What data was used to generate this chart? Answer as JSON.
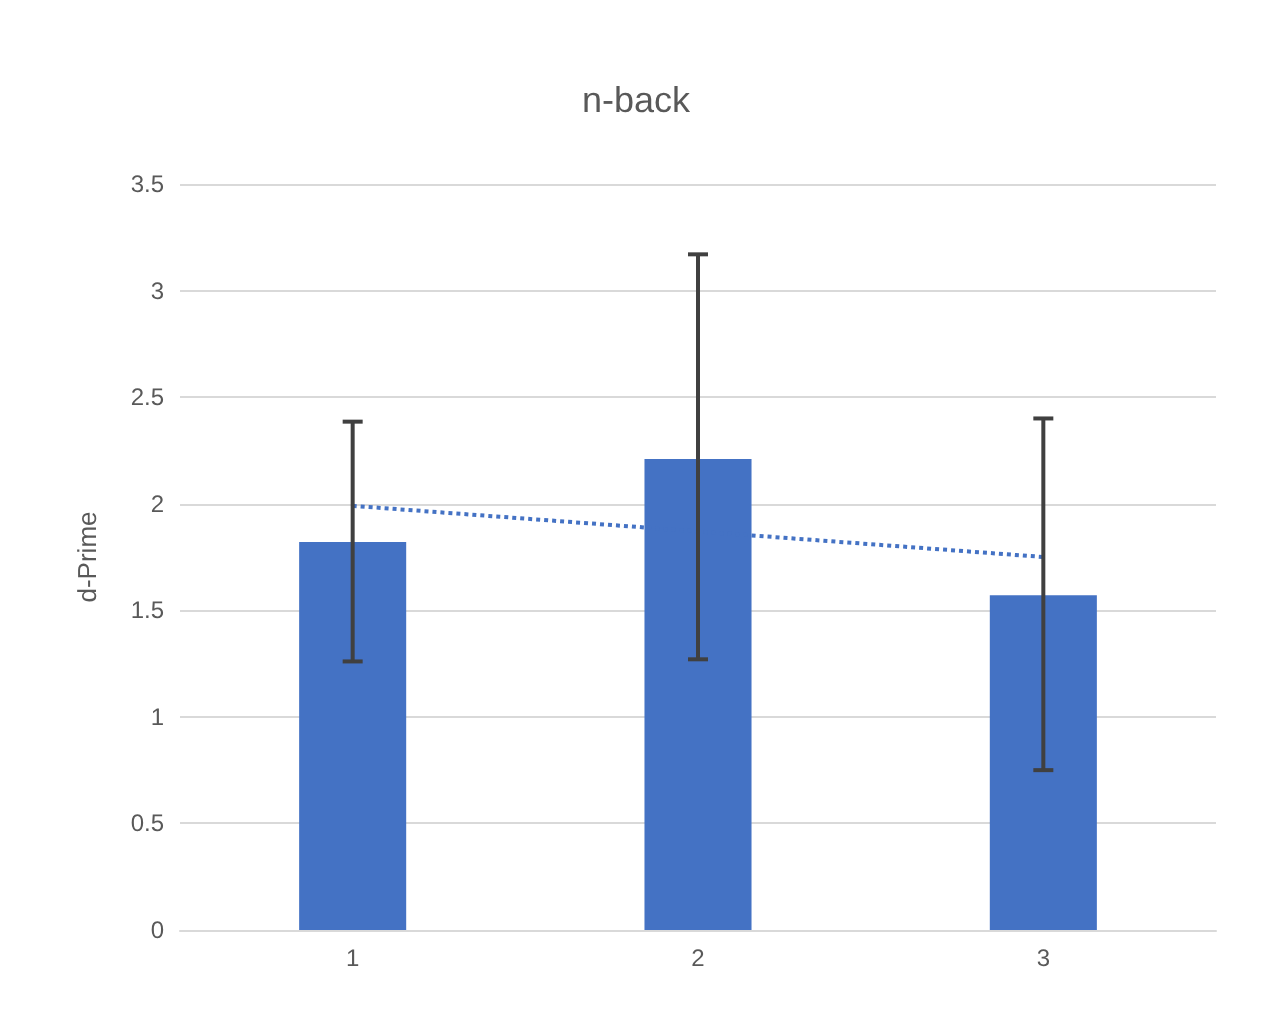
{
  "chart_data": {
    "type": "bar",
    "title": "n-back",
    "ylabel": "d-Prime",
    "categories": [
      "1",
      "2",
      "3"
    ],
    "series": [
      {
        "color": "#4472c4",
        "values": [
          1.82,
          2.21,
          1.57
        ],
        "errors": [
          [
            1.26,
            2.385
          ],
          [
            1.27,
            3.17
          ],
          [
            0.75,
            2.4
          ]
        ]
      },
      {
        "type": "line",
        "x": [
          "1",
          "3"
        ],
        "values": [
          1.99,
          1.75
        ],
        "color": "#4472c4",
        "line_style": "dotted",
        "marker": "none"
      }
    ],
    "ylim": [
      0,
      3.5
    ],
    "yticks": [
      0,
      0.5,
      1,
      1.5,
      2,
      2.5,
      3,
      3.5
    ],
    "grid": "y"
  }
}
